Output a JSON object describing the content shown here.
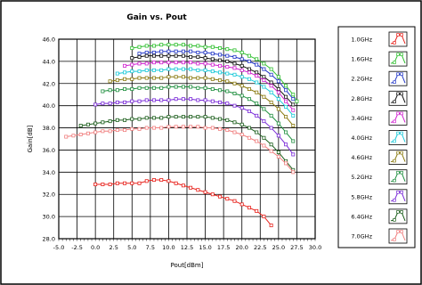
{
  "chart_data": {
    "type": "line",
    "title": "Gain vs. Pout",
    "xlabel": "Pout[dBm]",
    "ylabel": "Gain[dB]",
    "xlim": [
      -5.0,
      30.0
    ],
    "ylim": [
      28.0,
      46.0
    ],
    "x_ticks": [
      "-5.0",
      "-2.5",
      "0.0",
      "2.5",
      "5.0",
      "7.5",
      "10.0",
      "12.5",
      "15.0",
      "17.5",
      "20.0",
      "22.5",
      "25.0",
      "27.5",
      "30.0"
    ],
    "y_ticks": [
      "28.0",
      "30.0",
      "32.0",
      "34.0",
      "36.0",
      "38.0",
      "40.0",
      "42.0",
      "44.0",
      "46.0"
    ],
    "grid": true,
    "legend_position": "right",
    "series": [
      {
        "name": "1.0GHz",
        "color": "#e8221c",
        "x": [
          0,
          1,
          2,
          3,
          4,
          5,
          6,
          7,
          8,
          9,
          10,
          11,
          12,
          13,
          14,
          15,
          16,
          17,
          18,
          19,
          20,
          21,
          22,
          23,
          24
        ],
        "y": [
          32.9,
          32.9,
          32.9,
          33.0,
          33.0,
          33.0,
          33.0,
          33.2,
          33.3,
          33.3,
          33.2,
          33.0,
          32.8,
          32.6,
          32.4,
          32.2,
          32.0,
          31.8,
          31.6,
          31.4,
          31.1,
          30.8,
          30.5,
          30.0,
          29.2
        ]
      },
      {
        "name": "1.6GHz",
        "color": "#2fbf2f",
        "x": [
          5,
          6,
          7,
          8,
          9,
          10,
          11,
          12,
          13,
          14,
          15,
          16,
          17,
          18,
          19,
          20,
          21,
          22,
          23,
          24,
          25,
          26,
          27,
          27.5
        ],
        "y": [
          45.2,
          45.3,
          45.4,
          45.4,
          45.5,
          45.5,
          45.5,
          45.5,
          45.4,
          45.4,
          45.3,
          45.3,
          45.2,
          45.1,
          45.0,
          44.8,
          44.5,
          44.2,
          43.8,
          43.3,
          42.6,
          41.8,
          41.0,
          40.4
        ]
      },
      {
        "name": "2.2GHz",
        "color": "#2438c8",
        "x": [
          6,
          7,
          8,
          9,
          10,
          11,
          12,
          13,
          14,
          15,
          16,
          17,
          18,
          19,
          20,
          21,
          22,
          23,
          24,
          25,
          26,
          27
        ],
        "y": [
          44.7,
          44.8,
          44.8,
          44.9,
          44.9,
          44.9,
          44.9,
          44.9,
          44.8,
          44.8,
          44.7,
          44.6,
          44.5,
          44.4,
          44.2,
          44.0,
          43.7,
          43.3,
          42.8,
          42.2,
          41.4,
          40.6
        ]
      },
      {
        "name": "2.8GHz",
        "color": "#111111",
        "x": [
          5,
          6,
          7,
          8,
          9,
          10,
          11,
          12,
          13,
          14,
          15,
          16,
          17,
          18,
          19,
          20,
          21,
          22,
          23,
          24,
          25,
          26,
          27
        ],
        "y": [
          44.3,
          44.4,
          44.5,
          44.5,
          44.5,
          44.5,
          44.5,
          44.5,
          44.4,
          44.4,
          44.3,
          44.2,
          44.1,
          44.0,
          43.8,
          43.6,
          43.3,
          43.0,
          42.6,
          42.1,
          41.5,
          40.8,
          40.1
        ]
      },
      {
        "name": "3.4GHz",
        "color": "#d020d0",
        "x": [
          4,
          5,
          6,
          7,
          8,
          9,
          10,
          11,
          12,
          13,
          14,
          15,
          16,
          17,
          18,
          19,
          20,
          21,
          22,
          23,
          24,
          25,
          26,
          27
        ],
        "y": [
          43.6,
          43.7,
          43.8,
          43.8,
          43.9,
          43.9,
          43.9,
          43.9,
          43.9,
          43.9,
          43.8,
          43.8,
          43.7,
          43.6,
          43.5,
          43.4,
          43.2,
          43.0,
          42.7,
          42.3,
          41.8,
          41.2,
          40.4,
          39.6
        ]
      },
      {
        "name": "4.0GHz",
        "color": "#18c8d8",
        "x": [
          3,
          4,
          5,
          6,
          7,
          8,
          9,
          10,
          11,
          12,
          13,
          14,
          15,
          16,
          17,
          18,
          19,
          20,
          21,
          22,
          23,
          24,
          25,
          26,
          27
        ],
        "y": [
          42.9,
          43.0,
          43.1,
          43.1,
          43.2,
          43.2,
          43.2,
          43.3,
          43.3,
          43.3,
          43.3,
          43.2,
          43.2,
          43.1,
          43.0,
          42.9,
          42.8,
          42.6,
          42.4,
          42.1,
          41.7,
          41.2,
          40.6,
          39.9,
          39.1
        ]
      },
      {
        "name": "4.6GHz",
        "color": "#8a7a10",
        "x": [
          2,
          3,
          4,
          5,
          6,
          7,
          8,
          9,
          10,
          11,
          12,
          13,
          14,
          15,
          16,
          17,
          18,
          19,
          20,
          21,
          22,
          23,
          24,
          25,
          26,
          27
        ],
        "y": [
          42.2,
          42.3,
          42.4,
          42.4,
          42.5,
          42.5,
          42.5,
          42.5,
          42.6,
          42.6,
          42.6,
          42.5,
          42.5,
          42.5,
          42.4,
          42.3,
          42.2,
          42.0,
          41.8,
          41.5,
          41.2,
          40.8,
          40.3,
          39.7,
          39.0,
          38.2
        ]
      },
      {
        "name": "5.2GHz",
        "color": "#1f8f3f",
        "x": [
          1,
          2,
          3,
          4,
          5,
          6,
          7,
          8,
          9,
          10,
          11,
          12,
          13,
          14,
          15,
          16,
          17,
          18,
          19,
          20,
          21,
          22,
          23,
          24,
          25,
          26,
          27
        ],
        "y": [
          41.3,
          41.4,
          41.4,
          41.5,
          41.5,
          41.6,
          41.6,
          41.6,
          41.6,
          41.7,
          41.7,
          41.7,
          41.7,
          41.6,
          41.6,
          41.5,
          41.4,
          41.3,
          41.1,
          40.9,
          40.6,
          40.2,
          39.7,
          39.1,
          38.4,
          37.6,
          36.8
        ]
      },
      {
        "name": "5.8GHz",
        "color": "#7a2ad8",
        "x": [
          0,
          1,
          2,
          3,
          4,
          5,
          6,
          7,
          8,
          9,
          10,
          11,
          12,
          13,
          14,
          15,
          16,
          17,
          18,
          19,
          20,
          21,
          22,
          23,
          24,
          25,
          26,
          27
        ],
        "y": [
          40.1,
          40.2,
          40.2,
          40.3,
          40.3,
          40.4,
          40.4,
          40.5,
          40.5,
          40.5,
          40.5,
          40.6,
          40.6,
          40.6,
          40.5,
          40.5,
          40.4,
          40.3,
          40.2,
          40.0,
          39.8,
          39.5,
          39.1,
          38.6,
          38.0,
          37.3,
          36.5,
          35.6
        ]
      },
      {
        "name": "6.4GHz",
        "color": "#1d5f1d",
        "x": [
          -2,
          -1,
          0,
          1,
          2,
          3,
          4,
          5,
          6,
          7,
          8,
          9,
          10,
          11,
          12,
          13,
          14,
          15,
          16,
          17,
          18,
          19,
          20,
          21,
          22,
          23,
          24,
          25,
          26,
          27
        ],
        "y": [
          38.2,
          38.3,
          38.4,
          38.5,
          38.6,
          38.7,
          38.7,
          38.8,
          38.8,
          38.9,
          38.9,
          38.9,
          39.0,
          39.0,
          39.0,
          39.0,
          39.0,
          39.0,
          38.9,
          38.8,
          38.7,
          38.5,
          38.3,
          38.0,
          37.6,
          37.1,
          36.5,
          35.8,
          35.0,
          34.2
        ]
      },
      {
        "name": "7.0GHz",
        "color": "#f08080",
        "x": [
          -4,
          -3,
          -2,
          -1,
          0,
          1,
          2,
          3,
          4,
          5,
          6,
          7,
          8,
          9,
          10,
          11,
          12,
          13,
          14,
          15,
          16,
          17,
          18,
          19,
          20,
          21,
          22,
          23,
          24,
          25,
          26,
          27
        ],
        "y": [
          37.2,
          37.3,
          37.4,
          37.5,
          37.6,
          37.7,
          37.7,
          37.8,
          37.8,
          37.9,
          37.9,
          38.0,
          38.0,
          38.0,
          38.1,
          38.1,
          38.1,
          38.1,
          38.1,
          38.0,
          38.0,
          37.9,
          37.8,
          37.6,
          37.4,
          37.1,
          36.8,
          36.4,
          35.9,
          35.4,
          34.8,
          34.0
        ]
      }
    ]
  }
}
